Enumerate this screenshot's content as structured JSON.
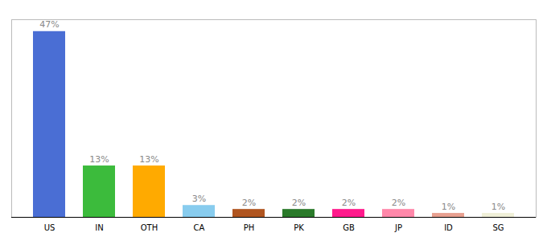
{
  "chart_data": {
    "type": "bar",
    "categories": [
      "US",
      "IN",
      "OTH",
      "CA",
      "PH",
      "PK",
      "GB",
      "JP",
      "ID",
      "SG"
    ],
    "values": [
      47,
      13,
      13,
      3,
      2,
      2,
      2,
      2,
      1,
      1
    ],
    "value_labels": [
      "47%",
      "13%",
      "13%",
      "3%",
      "2%",
      "2%",
      "2%",
      "2%",
      "1%",
      "1%"
    ],
    "colors": [
      "#4a6ed4",
      "#3cbb3c",
      "#ffaa00",
      "#88ccee",
      "#b05520",
      "#2a7a2a",
      "#ff1a8c",
      "#ff88aa",
      "#e8a090",
      "#f0f0d8"
    ],
    "ylim": [
      0,
      50
    ],
    "data_labels": true,
    "tick_labels": "x",
    "grid": false
  }
}
